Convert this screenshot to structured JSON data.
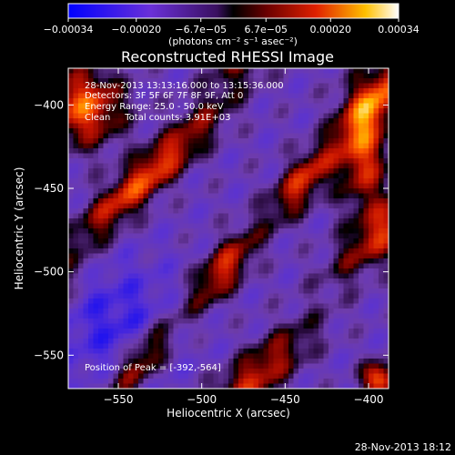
{
  "chart_data": {
    "type": "heatmap",
    "title": "Reconstructed RHESSI Image",
    "xlabel": "Heliocentric X (arcsec)",
    "ylabel": "Heliocentric Y (arcsec)",
    "xlim": [
      -580,
      -388
    ],
    "ylim": [
      -570,
      -378
    ],
    "x_ticks": [
      {
        "value": -550,
        "label": "−550"
      },
      {
        "value": -500,
        "label": "−500"
      },
      {
        "value": -450,
        "label": "−450"
      },
      {
        "value": -400,
        "label": "−400"
      }
    ],
    "y_ticks": [
      {
        "value": -400,
        "label": "−400"
      },
      {
        "value": -450,
        "label": "−450"
      },
      {
        "value": -500,
        "label": "−500"
      },
      {
        "value": -550,
        "label": "−550"
      }
    ],
    "colorbar": {
      "range": [
        -0.00034,
        0.00034
      ],
      "ticks": [
        {
          "value": -0.00034,
          "label": "−0.00034"
        },
        {
          "value": -0.0002,
          "label": "−0.00020"
        },
        {
          "value": -6.7e-05,
          "label": "−6.7e−05"
        },
        {
          "value": 6.7e-05,
          "label": "6.7e−05"
        },
        {
          "value": 0.0002,
          "label": "0.00020"
        },
        {
          "value": 0.00034,
          "label": "0.00034"
        }
      ],
      "units": "(photons cm⁻² s⁻¹ asec⁻²)"
    },
    "annotations": [
      "28-Nov-2013 13:13:16.000 to 13:15:36.000",
      "Detectors: 3F 5F 6F 7F 8F 9F, Att 0",
      "Energy Range: 25.0 - 50.0 keV",
      "Clean     Total counts: 3.91E+03"
    ],
    "peak_label": "Position of Peak = [-392,-564]",
    "peak": {
      "x": -392,
      "y": -564
    },
    "timestamp": "28-Nov-2013 18:12",
    "colors": {
      "negative_low": "#0000ff",
      "negative_mid": "#7733cc",
      "zero": "#000000",
      "positive_mid": "#cc1100",
      "positive_high": "#ffffff"
    }
  }
}
